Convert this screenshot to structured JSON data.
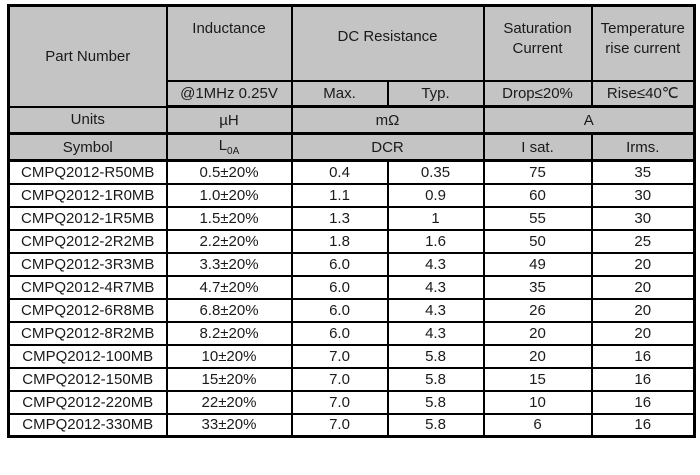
{
  "colors": {
    "header-bg": "#c4c4c4",
    "border": "#000000",
    "text": "#1a1a1a",
    "row-bg": "#ffffff"
  },
  "table": {
    "header": {
      "part_number": "Part Number",
      "inductance": "Inductance",
      "inductance_condition": "@1MHz 0.25V",
      "dc_resistance": "DC Resistance",
      "dcr_max": "Max.",
      "dcr_typ": "Typ.",
      "saturation_current": "Saturation Current",
      "saturation_condition": "Drop≤20%",
      "temperature_rise_current": "Temperature rise current",
      "temperature_condition": "Rise≤40℃"
    },
    "units_row": {
      "label": "Units",
      "inductance": "µH",
      "dcr": "mΩ",
      "current": "A"
    },
    "symbol_row": {
      "label": "Symbol",
      "inductance_base": "L",
      "inductance_sub": "0A",
      "dcr": "DCR",
      "isat": "I sat.",
      "irms": "Irms."
    },
    "columns": [
      "part",
      "l",
      "max",
      "typ",
      "isat",
      "irms"
    ],
    "rows": [
      {
        "part": "CMPQ2012-R50MB",
        "l": "0.5±20%",
        "max": "0.4",
        "typ": "0.35",
        "isat": "75",
        "irms": "35"
      },
      {
        "part": "CMPQ2012-1R0MB",
        "l": "1.0±20%",
        "max": "1.1",
        "typ": "0.9",
        "isat": "60",
        "irms": "30"
      },
      {
        "part": "CMPQ2012-1R5MB",
        "l": "1.5±20%",
        "max": "1.3",
        "typ": "1",
        "isat": "55",
        "irms": "30"
      },
      {
        "part": "CMPQ2012-2R2MB",
        "l": "2.2±20%",
        "max": "1.8",
        "typ": "1.6",
        "isat": "50",
        "irms": "25"
      },
      {
        "part": "CMPQ2012-3R3MB",
        "l": "3.3±20%",
        "max": "6.0",
        "typ": "4.3",
        "isat": "49",
        "irms": "20"
      },
      {
        "part": "CMPQ2012-4R7MB",
        "l": "4.7±20%",
        "max": "6.0",
        "typ": "4.3",
        "isat": "35",
        "irms": "20"
      },
      {
        "part": "CMPQ2012-6R8MB",
        "l": "6.8±20%",
        "max": "6.0",
        "typ": "4.3",
        "isat": "26",
        "irms": "20"
      },
      {
        "part": "CMPQ2012-8R2MB",
        "l": "8.2±20%",
        "max": "6.0",
        "typ": "4.3",
        "isat": "20",
        "irms": "20"
      },
      {
        "part": "CMPQ2012-100MB",
        "l": "10±20%",
        "max": "7.0",
        "typ": "5.8",
        "isat": "20",
        "irms": "16"
      },
      {
        "part": "CMPQ2012-150MB",
        "l": "15±20%",
        "max": "7.0",
        "typ": "5.8",
        "isat": "15",
        "irms": "16"
      },
      {
        "part": "CMPQ2012-220MB",
        "l": "22±20%",
        "max": "7.0",
        "typ": "5.8",
        "isat": "10",
        "irms": "16"
      },
      {
        "part": "CMPQ2012-330MB",
        "l": "33±20%",
        "max": "7.0",
        "typ": "5.8",
        "isat": "6",
        "irms": "16"
      }
    ]
  }
}
